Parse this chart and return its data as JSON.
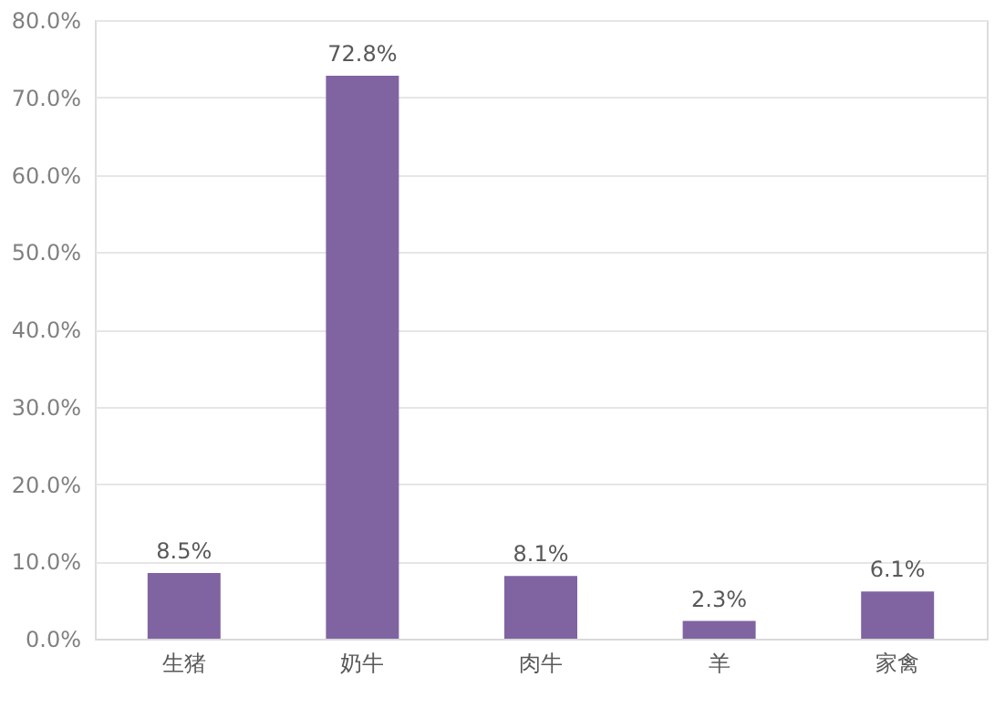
{
  "chart_data": {
    "type": "bar",
    "categories": [
      "生猪",
      "奶牛",
      "肉牛",
      "羊",
      "家禽"
    ],
    "values": [
      8.5,
      72.8,
      8.1,
      2.3,
      6.1
    ],
    "value_labels": [
      "8.5%",
      "72.8%",
      "8.1%",
      "2.3%",
      "6.1%"
    ],
    "color": "#8064a2",
    "ylim": [
      0,
      80
    ],
    "yticks": [
      {
        "value": 0,
        "label": "0.0%"
      },
      {
        "value": 10,
        "label": "10.0%"
      },
      {
        "value": 20,
        "label": "20.0%"
      },
      {
        "value": 30,
        "label": "30.0%"
      },
      {
        "value": 40,
        "label": "40.0%"
      },
      {
        "value": 50,
        "label": "50.0%"
      },
      {
        "value": 60,
        "label": "60.0%"
      },
      {
        "value": 70,
        "label": "70.0%"
      },
      {
        "value": 80,
        "label": "80.0%"
      }
    ],
    "grid": "y"
  }
}
